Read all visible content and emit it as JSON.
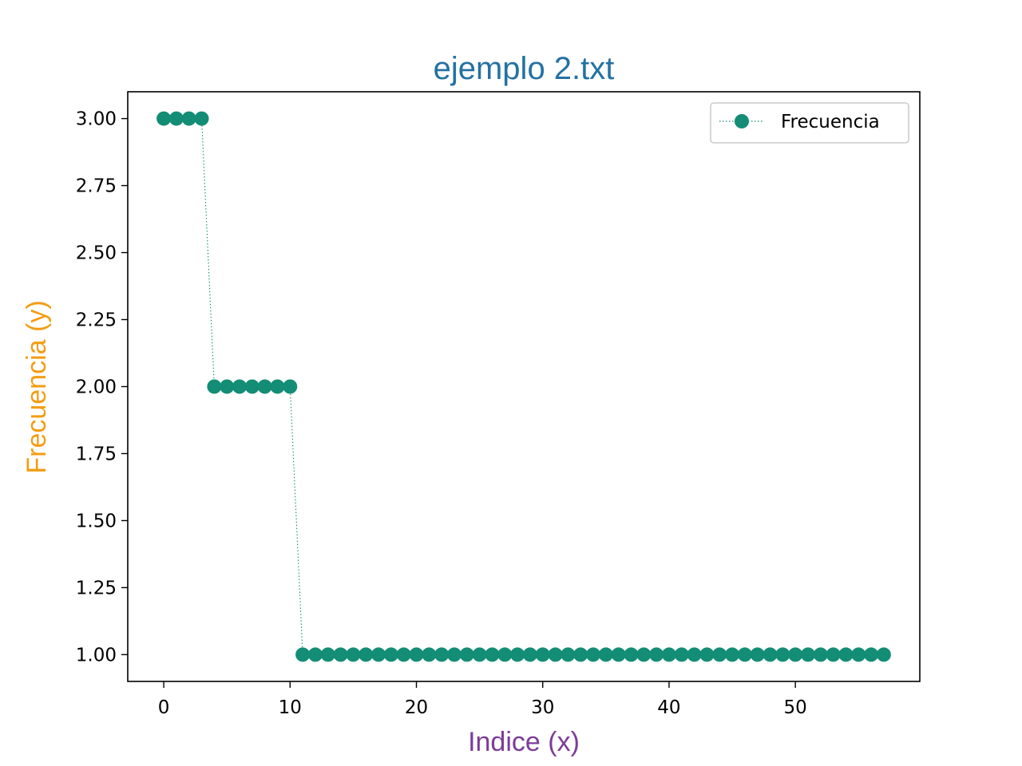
{
  "chart_data": {
    "type": "line",
    "title": "ejemplo 2.txt",
    "xlabel": "Indice (x)",
    "ylabel": "Frecuencia (y)",
    "xlim": [
      -2.85,
      59.85
    ],
    "ylim": [
      0.9,
      3.1
    ],
    "xticks": [
      0,
      10,
      20,
      30,
      40,
      50
    ],
    "xtick_labels": [
      "0",
      "10",
      "20",
      "30",
      "40",
      "50"
    ],
    "yticks": [
      1.0,
      1.25,
      1.5,
      1.75,
      2.0,
      2.25,
      2.5,
      2.75,
      3.0
    ],
    "ytick_labels": [
      "1.00",
      "1.25",
      "1.50",
      "1.75",
      "2.00",
      "2.25",
      "2.50",
      "2.75",
      "3.00"
    ],
    "grid": false,
    "legend_position": "top-right",
    "series": [
      {
        "name": "Frecuencia",
        "line_style": "dotted",
        "marker": "circle",
        "color": "#138d75",
        "x": [
          0,
          1,
          2,
          3,
          4,
          5,
          6,
          7,
          8,
          9,
          10,
          11,
          12,
          13,
          14,
          15,
          16,
          17,
          18,
          19,
          20,
          21,
          22,
          23,
          24,
          25,
          26,
          27,
          28,
          29,
          30,
          31,
          32,
          33,
          34,
          35,
          36,
          37,
          38,
          39,
          40,
          41,
          42,
          43,
          44,
          45,
          46,
          47,
          48,
          49,
          50,
          51,
          52,
          53,
          54,
          55,
          56,
          57
        ],
        "y": [
          3,
          3,
          3,
          3,
          2,
          2,
          2,
          2,
          2,
          2,
          2,
          1,
          1,
          1,
          1,
          1,
          1,
          1,
          1,
          1,
          1,
          1,
          1,
          1,
          1,
          1,
          1,
          1,
          1,
          1,
          1,
          1,
          1,
          1,
          1,
          1,
          1,
          1,
          1,
          1,
          1,
          1,
          1,
          1,
          1,
          1,
          1,
          1,
          1,
          1,
          1,
          1,
          1,
          1,
          1,
          1,
          1,
          1
        ]
      }
    ]
  },
  "colors": {
    "title": "#2471a3",
    "xlabel": "#7d3c98",
    "ylabel": "#f39c12",
    "series": "#138d75"
  }
}
